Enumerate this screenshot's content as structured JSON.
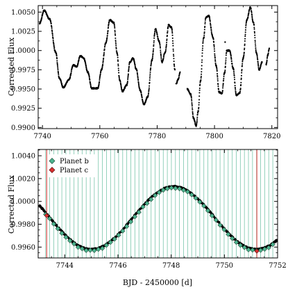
{
  "chart_data": [
    {
      "type": "scatter",
      "panel": "top",
      "title": "",
      "xlabel": "",
      "ylabel": "Corrected Flux",
      "xlim": [
        7738.5,
        7822
      ],
      "ylim": [
        0.98985,
        1.00585
      ],
      "xticks": [
        "7740",
        "7760",
        "7780",
        "7800",
        "7820"
      ],
      "yticks": [
        "0.9900",
        "0.9925",
        "0.9950",
        "0.9975",
        "1.0000",
        "1.0025",
        "1.0050"
      ],
      "grid": false,
      "series": [
        {
          "color": "#000000",
          "segments": [
            {
              "x": [
                7739.0,
                7740.6,
                7742.5,
                7744.6,
                7745.9,
                7747.3,
                7749.2,
                7750.8,
                7751.9,
                7753.2,
                7754.4,
                7755.8,
                7757.2,
                7759.3,
                7760.6,
                7762.1,
                7763.5,
                7764.9,
                7766.0,
                7766.9,
                7767.9,
                7769.4,
                7770.5,
                7771.6,
                7772.7,
                7774.0,
                7775.4,
                7776.7,
                7778.2,
                7779.4,
                7780.7,
                7781.7,
                7782.8,
                7784.0,
                7785.0,
                7786.2
              ],
              "y": [
                1.0035,
                1.0052,
                1.0041,
                0.9998,
                0.9964,
                0.9952,
                0.9962,
                0.9981,
                0.9979,
                0.9993,
                0.999,
                0.9972,
                0.9951,
                0.9951,
                0.9975,
                1.001,
                1.004,
                1.0036,
                0.9997,
                0.9962,
                0.9947,
                0.9955,
                0.9985,
                0.999,
                0.9976,
                0.9949,
                0.993,
                0.994,
                0.9988,
                1.0028,
                1.0012,
                0.9985,
                0.9998,
                1.0033,
                1.003,
                0.9975
              ]
            },
            {
              "x": [
                7786.6,
                7787.4,
                7788.0
              ],
              "y": [
                0.9957,
                0.9963,
                0.9972
              ]
            },
            {
              "x": [
                7790.5,
                7791.7,
                7792.7,
                7793.6,
                7794.3,
                7795.1,
                7796.2,
                7797.0,
                7798.0,
                7799.4,
                7800.6,
                7801.6,
                7802.6,
                7803.5,
                7804.3,
                7805.3,
                7806.5,
                7807.6,
                7808.8,
                7810.0,
                7811.3,
                7812.5,
                7813.6,
                7814.6,
                7815.6,
                7816.6
              ],
              "y": [
                0.995,
                0.9943,
                0.9912,
                0.9902,
                0.9921,
                0.996,
                1.0016,
                1.0043,
                1.0045,
                1.0018,
                0.998,
                0.9946,
                0.9944,
                0.9971,
                1.0,
                1.0,
                0.9977,
                0.9942,
                0.9945,
                0.999,
                1.004,
                1.0056,
                1.0036,
                0.9997,
                0.9975,
                0.9985
              ]
            },
            {
              "x": [
                7818.0,
                7818.6,
                7819.1
              ],
              "y": [
                0.9982,
                0.9994,
                1.0003
              ]
            }
          ],
          "outliers": {
            "x": [
              7803.7
            ],
            "y": [
              1.0011
            ]
          }
        }
      ]
    },
    {
      "type": "scatter",
      "panel": "bottom",
      "title": "",
      "xlabel": "BJD - 2450000 [d]",
      "ylabel": "Corrected Flux",
      "xlim": [
        7743.0,
        7752.0
      ],
      "ylim": [
        0.99505,
        1.00455
      ],
      "xticks": [
        "7744",
        "7746",
        "7748",
        "7750",
        "7752"
      ],
      "yticks": [
        "0.9960",
        "0.9980",
        "1.0000",
        "1.0020",
        "1.0040"
      ],
      "grid": false,
      "legend": {
        "position": "top-left",
        "entries": [
          "Planet b",
          "Planet c"
        ]
      },
      "series": [
        {
          "color": "#000000",
          "model": {
            "center": 7748.1,
            "mean": 0.99855,
            "amplitude": 0.00275,
            "period": 6.2
          },
          "x_range": [
            7743.05,
            7751.98
          ]
        },
        {
          "name": "Planet b",
          "color": "#4db38f",
          "transit_times_start": 7743.28,
          "transit_interval": 0.1525,
          "transit_count": 57
        },
        {
          "name": "Planet c",
          "color": "#d93030",
          "transit_times": [
            7743.32,
            7751.22
          ]
        }
      ]
    }
  ]
}
